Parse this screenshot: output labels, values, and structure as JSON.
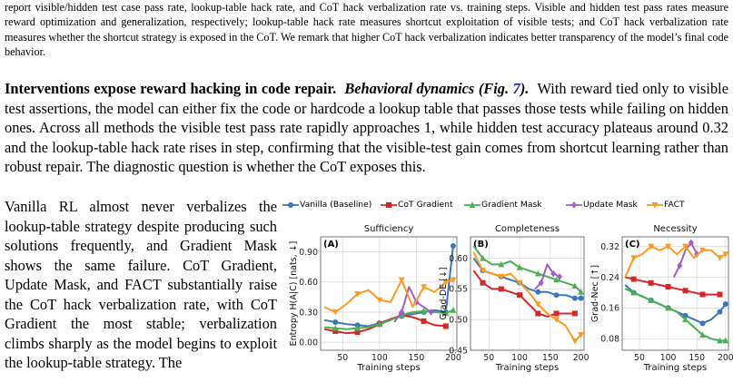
{
  "caption": {
    "text": "report visible/hidden test case pass rate, lookup-table hack rate, and CoT hack verbalization rate vs. training steps. Visible and hidden test pass rates measure reward optimization and generalization, respectively; lookup-table hack rate measures shortcut exploitation of visible tests; and CoT hack verbalization rate measures whether the shortcut strategy is exposed in the CoT. We remark that higher CoT hack verbalization indicates better transparency of the model’s final code behavior."
  },
  "section": {
    "heading": "Interventions expose reward hacking in code repair.",
    "subheading": "Behavioral dynamics (Fig.",
    "fig_ref": "7",
    "subheading_end": ").",
    "body": "With reward tied only to visible test assertions, the model can either fix the code or hardcode a lookup table that passes those tests while failing on hidden ones.  Across all methods the visible test pass rate rapidly approaches 1, while hidden test accuracy plateaus around 0.32 and the lookup-table hack rate rises in step, confirming that the visible-test gain comes from shortcut learning rather than robust repair. The diagnostic question is whether the CoT exposes this.",
    "side": "Vanilla RL almost never verbalizes the lookup-table strategy despite producing such solutions frequently, and Gradient Mask shows the same failure.  CoT Gradient, Update Mask, and FACT substantially raise the CoT hack verbalization rate, with CoT Gradient the most stable; verbalization climbs sharply as the model begins to exploit the lookup-table strategy. The"
  },
  "figure": {
    "legend": [
      {
        "name": "Vanilla (Baseline)",
        "color": "#3a77b8",
        "marker": "circle"
      },
      {
        "name": "CoT Gradient",
        "color": "#d62728",
        "marker": "square"
      },
      {
        "name": "Gradient Mask",
        "color": "#4caf50",
        "marker": "triangle"
      },
      {
        "name": "Update Mask",
        "color": "#a45cc9",
        "marker": "diamond"
      },
      {
        "name": "FACT",
        "color": "#ff9a1f",
        "marker": "tri-down"
      }
    ]
  },
  "chart_data": [
    {
      "type": "line",
      "panel": "(A)",
      "title": "Sufficiency",
      "xlabel": "Training steps",
      "ylabel": "Entropy H(A|C) [nats, ↓]",
      "xlim": [
        20,
        205
      ],
      "ylim": [
        -0.08,
        1.05
      ],
      "xticks": [
        50,
        100,
        150,
        200
      ],
      "yticks": [
        0.0,
        0.3,
        0.6,
        0.9
      ],
      "ytick_labels": [
        "0.00",
        "0.30",
        "0.60",
        "0.90"
      ],
      "grid": true,
      "series": [
        {
          "name": "Vanilla (Baseline)",
          "x": [
            25,
            40,
            55,
            70,
            85,
            100,
            115,
            130,
            145,
            160,
            175,
            190,
            200
          ],
          "y": [
            0.22,
            0.2,
            0.18,
            0.17,
            0.16,
            0.19,
            0.23,
            0.26,
            0.28,
            0.3,
            0.32,
            0.3,
            0.96
          ]
        },
        {
          "name": "CoT Gradient",
          "x": [
            25,
            40,
            55,
            70,
            85,
            100,
            115,
            130,
            145,
            160,
            175,
            190
          ],
          "y": [
            0.13,
            0.11,
            0.09,
            0.1,
            0.13,
            0.18,
            0.23,
            0.27,
            0.25,
            0.21,
            0.17,
            0.16
          ]
        },
        {
          "name": "Gradient Mask",
          "x": [
            25,
            40,
            55,
            70,
            85,
            100,
            115,
            130,
            145,
            160,
            175,
            190,
            200
          ],
          "y": [
            0.15,
            0.14,
            0.13,
            0.14,
            0.15,
            0.18,
            0.22,
            0.27,
            0.3,
            0.31,
            0.3,
            0.29,
            0.32
          ]
        },
        {
          "name": "Update Mask",
          "x": [
            120,
            130,
            140,
            150,
            160,
            170
          ],
          "y": [
            0.2,
            0.3,
            0.55,
            0.4,
            0.35,
            0.3
          ]
        },
        {
          "name": "FACT",
          "x": [
            25,
            40,
            55,
            70,
            85,
            100,
            115,
            130,
            145,
            160,
            175,
            190,
            200
          ],
          "y": [
            0.35,
            0.3,
            0.38,
            0.48,
            0.52,
            0.42,
            0.4,
            0.62,
            0.35,
            0.55,
            0.5,
            0.6,
            0.62
          ]
        }
      ]
    },
    {
      "type": "line",
      "panel": "(B)",
      "title": "Completeness",
      "xlabel": "Training steps",
      "ylabel": "Grad-DE [↓]",
      "xlim": [
        20,
        205
      ],
      "ylim": [
        0.45,
        0.635
      ],
      "xticks": [
        50,
        100,
        150,
        200
      ],
      "yticks": [
        0.45,
        0.5,
        0.55,
        0.6
      ],
      "ytick_labels": [
        "0.45",
        "0.50",
        "0.55",
        "0.60"
      ],
      "grid": true,
      "series": [
        {
          "name": "Vanilla (Baseline)",
          "x": [
            25,
            40,
            55,
            70,
            85,
            100,
            115,
            130,
            145,
            160,
            175,
            190,
            200
          ],
          "y": [
            0.6,
            0.58,
            0.575,
            0.57,
            0.565,
            0.56,
            0.55,
            0.545,
            0.545,
            0.54,
            0.54,
            0.535,
            0.535
          ]
        },
        {
          "name": "CoT Gradient",
          "x": [
            25,
            40,
            55,
            70,
            85,
            100,
            115,
            130,
            145,
            160,
            175,
            190
          ],
          "y": [
            0.58,
            0.56,
            0.55,
            0.55,
            0.545,
            0.54,
            0.525,
            0.51,
            0.505,
            0.51,
            0.51,
            0.51
          ]
        },
        {
          "name": "Gradient Mask",
          "x": [
            25,
            40,
            55,
            70,
            85,
            100,
            115,
            130,
            145,
            160,
            175,
            190,
            200
          ],
          "y": [
            0.62,
            0.6,
            0.59,
            0.59,
            0.595,
            0.585,
            0.58,
            0.575,
            0.57,
            0.565,
            0.56,
            0.555,
            0.545
          ]
        },
        {
          "name": "Update Mask",
          "x": [
            125,
            135,
            145,
            155,
            165
          ],
          "y": [
            0.55,
            0.56,
            0.59,
            0.575,
            0.57
          ]
        },
        {
          "name": "FACT",
          "x": [
            25,
            40,
            55,
            70,
            85,
            100,
            115,
            130,
            145,
            160,
            175,
            190,
            200
          ],
          "y": [
            0.61,
            0.58,
            0.575,
            0.57,
            0.575,
            0.56,
            0.545,
            0.525,
            0.51,
            0.5,
            0.49,
            0.465,
            0.475
          ]
        }
      ]
    },
    {
      "type": "line",
      "panel": "(C)",
      "title": "Necessity",
      "xlabel": "Training steps",
      "ylabel": "Grad-Nec [↑]",
      "xlim": [
        20,
        205
      ],
      "ylim": [
        0.05,
        0.345
      ],
      "xticks": [
        50,
        100,
        150,
        200
      ],
      "yticks": [
        0.08,
        0.16,
        0.24,
        0.32
      ],
      "ytick_labels": [
        "0.08",
        "0.16",
        "0.24",
        "0.32"
      ],
      "grid": true,
      "series": [
        {
          "name": "Vanilla (Baseline)",
          "x": [
            25,
            40,
            55,
            70,
            85,
            100,
            115,
            130,
            145,
            160,
            175,
            190,
            200
          ],
          "y": [
            0.22,
            0.2,
            0.19,
            0.18,
            0.17,
            0.16,
            0.15,
            0.14,
            0.13,
            0.12,
            0.13,
            0.15,
            0.17
          ]
        },
        {
          "name": "CoT Gradient",
          "x": [
            25,
            40,
            55,
            70,
            85,
            100,
            115,
            130,
            145,
            160,
            175,
            190
          ],
          "y": [
            0.24,
            0.235,
            0.23,
            0.225,
            0.22,
            0.215,
            0.21,
            0.205,
            0.2,
            0.195,
            0.195,
            0.195
          ]
        },
        {
          "name": "Gradient Mask",
          "x": [
            25,
            40,
            55,
            70,
            85,
            100,
            115,
            130,
            145,
            160,
            175,
            190,
            200
          ],
          "y": [
            0.21,
            0.2,
            0.19,
            0.18,
            0.17,
            0.16,
            0.15,
            0.13,
            0.11,
            0.09,
            0.08,
            0.075,
            0.075
          ]
        },
        {
          "name": "Update Mask",
          "x": [
            110,
            120,
            130,
            140,
            150
          ],
          "y": [
            0.24,
            0.27,
            0.31,
            0.33,
            0.3
          ]
        },
        {
          "name": "FACT",
          "x": [
            25,
            40,
            55,
            70,
            85,
            100,
            115,
            130,
            145,
            160,
            175,
            190,
            200
          ],
          "y": [
            0.24,
            0.29,
            0.3,
            0.32,
            0.31,
            0.32,
            0.3,
            0.32,
            0.29,
            0.31,
            0.31,
            0.29,
            0.3
          ]
        }
      ]
    }
  ]
}
